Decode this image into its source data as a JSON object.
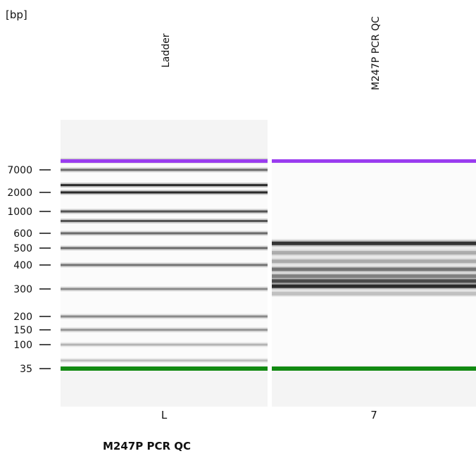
{
  "unit_label": "[bp]",
  "sample_title": "M247P PCR QC",
  "chart_data": {
    "type": "gel",
    "y_unit": "[bp]",
    "ladder_ticks": [
      {
        "label": "7000",
        "value": 7000
      },
      {
        "label": "2000",
        "value": 2000
      },
      {
        "label": "1000",
        "value": 1000
      },
      {
        "label": "600",
        "value": 600
      },
      {
        "label": "500",
        "value": 500
      },
      {
        "label": "400",
        "value": 400
      },
      {
        "label": "300",
        "value": 300
      },
      {
        "label": "200",
        "value": 200
      },
      {
        "label": "150",
        "value": 150
      },
      {
        "label": "100",
        "value": 100
      },
      {
        "label": "35",
        "value": 35
      }
    ],
    "lanes": [
      {
        "name": "Ladder",
        "code": "L",
        "upper_marker_color": "#9a3cf0",
        "lower_marker_color": "#128a12",
        "bands": [
          {
            "bp": 10380,
            "intensity": 0.7
          },
          {
            "bp": 7000,
            "intensity": 0.6
          },
          {
            "bp": 3000,
            "intensity": 0.9
          },
          {
            "bp": 2000,
            "intensity": 0.9
          },
          {
            "bp": 1000,
            "intensity": 0.7
          },
          {
            "bp": 800,
            "intensity": 0.7
          },
          {
            "bp": 600,
            "intensity": 0.6
          },
          {
            "bp": 500,
            "intensity": 0.6
          },
          {
            "bp": 400,
            "intensity": 0.55
          },
          {
            "bp": 300,
            "intensity": 0.45
          },
          {
            "bp": 200,
            "intensity": 0.45
          },
          {
            "bp": 150,
            "intensity": 0.4
          },
          {
            "bp": 100,
            "intensity": 0.25
          },
          {
            "bp": 50,
            "intensity": 0.2
          }
        ]
      },
      {
        "name": "M247P PCR QC",
        "code": "7",
        "upper_marker_color": "#9a3cf0",
        "lower_marker_color": "#128a12",
        "bands": [
          {
            "bp": 530,
            "intensity": 0.85
          },
          {
            "bp": 470,
            "intensity": 0.3
          },
          {
            "bp": 420,
            "intensity": 0.3
          },
          {
            "bp": 380,
            "intensity": 0.55
          },
          {
            "bp": 350,
            "intensity": 0.5
          },
          {
            "bp": 330,
            "intensity": 0.75
          },
          {
            "bp": 310,
            "intensity": 0.9
          },
          {
            "bp": 280,
            "intensity": 0.2
          }
        ]
      }
    ]
  }
}
